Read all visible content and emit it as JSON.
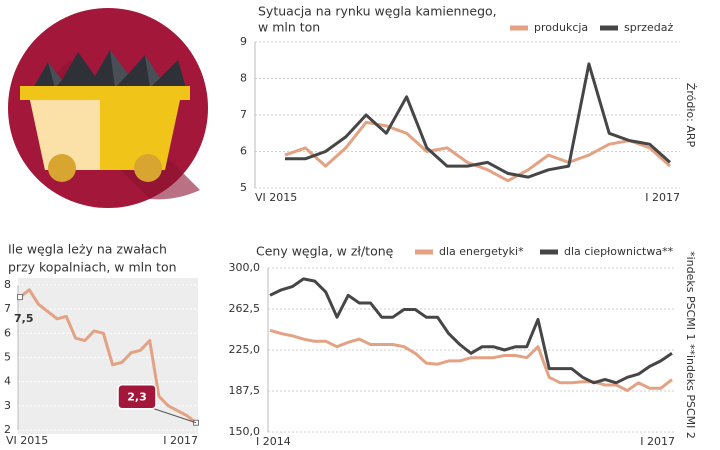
{
  "chart_data": [
    {
      "type": "line",
      "title": [
        "Sytuacja na rynku węgla kamiennego,",
        "w mln ton"
      ],
      "source": "Źródło: ARP",
      "categories": [
        "VI 2015",
        null,
        null,
        null,
        null,
        null,
        null,
        null,
        null,
        null,
        null,
        null,
        null,
        null,
        null,
        null,
        null,
        null,
        null,
        "I 2017"
      ],
      "series": [
        {
          "name": "produkcja",
          "color": "#e3a283",
          "values": [
            5.9,
            6.1,
            5.6,
            6.1,
            6.8,
            6.7,
            6.5,
            6.0,
            6.1,
            5.7,
            5.5,
            5.2,
            5.5,
            5.9,
            5.7,
            5.9,
            6.2,
            6.3,
            6.1,
            5.6
          ]
        },
        {
          "name": "sprzedaż",
          "color": "#464646",
          "values": [
            5.8,
            5.8,
            6.0,
            6.4,
            7.0,
            6.5,
            7.5,
            6.1,
            5.6,
            5.6,
            5.7,
            5.4,
            5.3,
            5.5,
            5.6,
            8.4,
            6.5,
            6.3,
            6.2,
            5.7
          ]
        }
      ],
      "ylim": [
        5,
        9
      ],
      "yticks": [
        5,
        6,
        7,
        8,
        9
      ],
      "grid": true
    },
    {
      "type": "line",
      "title": [
        "Ile węgla leży na zwałach",
        "przy kopalniach, w mln ton"
      ],
      "background": "#ededed",
      "categories": [
        "VI 2015",
        null,
        null,
        null,
        null,
        null,
        null,
        null,
        null,
        null,
        null,
        null,
        null,
        null,
        null,
        null,
        null,
        null,
        null,
        "I 2017"
      ],
      "series": [
        {
          "color": "#e3a283",
          "values": [
            7.5,
            7.8,
            7.2,
            6.9,
            6.6,
            6.7,
            5.8,
            5.7,
            6.1,
            6.0,
            4.7,
            4.8,
            5.2,
            5.3,
            5.7,
            3.4,
            3.0,
            2.8,
            2.6,
            2.3
          ],
          "value_labels": [
            "7,5",
            null,
            null,
            null,
            null,
            null,
            null,
            null,
            null,
            null,
            null,
            null,
            null,
            null,
            null,
            null,
            null,
            null,
            null,
            "2,3"
          ]
        }
      ],
      "ylim": [
        2,
        8
      ],
      "yticks": [
        2,
        3,
        4,
        5,
        6,
        7,
        8
      ],
      "grid": true
    },
    {
      "type": "line",
      "title": [
        "Ceny węgla, w zł/tonę"
      ],
      "note": "*indeks PSCMI 1  **indeks PSCMI 2",
      "categories": [
        "I 2014",
        null,
        null,
        null,
        null,
        null,
        null,
        null,
        null,
        null,
        null,
        null,
        null,
        null,
        null,
        null,
        null,
        null,
        null,
        null,
        null,
        null,
        null,
        null,
        null,
        null,
        null,
        null,
        null,
        null,
        null,
        null,
        null,
        null,
        null,
        null,
        "I 2017"
      ],
      "series": [
        {
          "name": "dla energetyki*",
          "color": "#e3a283",
          "values": [
            243,
            240,
            238,
            235,
            233,
            233,
            228,
            232,
            235,
            230,
            230,
            230,
            228,
            222,
            213,
            212,
            215,
            215,
            218,
            218,
            218,
            220,
            220,
            218,
            228,
            200,
            195,
            195,
            196,
            196,
            193,
            193,
            188,
            195,
            190,
            190,
            198
          ]
        },
        {
          "name": "dla ciepłownictwa**",
          "color": "#464646",
          "values": [
            275,
            280,
            283,
            290,
            288,
            278,
            255,
            275,
            268,
            268,
            255,
            255,
            262,
            262,
            255,
            255,
            240,
            230,
            222,
            228,
            228,
            225,
            228,
            228,
            253,
            208,
            208,
            208,
            200,
            195,
            198,
            195,
            200,
            203,
            210,
            215,
            222
          ]
        }
      ],
      "ylim": [
        150,
        300
      ],
      "yticks": [
        {
          "value": 150,
          "label": "150,0"
        },
        {
          "value": 187.5,
          "label": "187,5"
        },
        {
          "value": 225,
          "label": "225,0"
        },
        {
          "value": 262.5,
          "label": "262,5"
        },
        {
          "value": 300,
          "label": "300,0"
        }
      ],
      "grid": true
    }
  ]
}
